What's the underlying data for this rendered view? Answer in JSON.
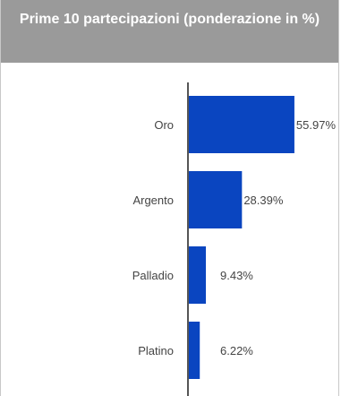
{
  "panel": {
    "title": "Prime 10 partecipazioni (ponderazione in %)"
  },
  "colors": {
    "bar": "#0a45c0",
    "axis": "#555555",
    "header_bg": "#9a9a9a"
  },
  "chart_data": {
    "type": "bar",
    "orientation": "horizontal",
    "categories": [
      "Oro",
      "Argento",
      "Palladio",
      "Platino"
    ],
    "values": [
      55.97,
      28.39,
      9.43,
      6.22
    ],
    "value_labels": [
      "55.97%",
      "28.39%",
      "9.43%",
      "6.22%"
    ],
    "xlim": [
      0,
      56
    ],
    "grid": false,
    "legend": "none"
  }
}
